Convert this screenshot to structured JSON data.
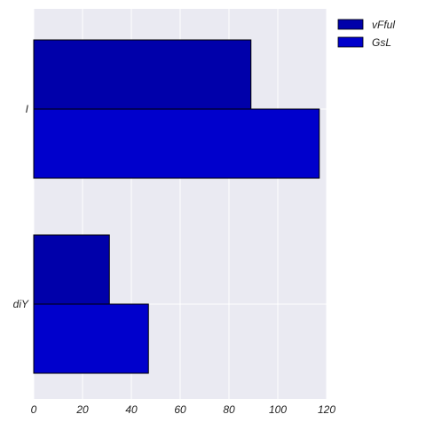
{
  "chart_data": {
    "type": "bar",
    "orientation": "horizontal",
    "categories": [
      "I",
      "diY"
    ],
    "series": [
      {
        "name": "vFful",
        "values": [
          89,
          31
        ],
        "color": "#0000aa"
      },
      {
        "name": "GsL",
        "values": [
          117,
          47
        ],
        "color": "#0000cc"
      }
    ],
    "xlim": [
      0,
      120
    ],
    "xticks": [
      "0",
      "20",
      "40",
      "60",
      "80",
      "100",
      "120"
    ],
    "grid": true,
    "legend_position": "top-right (outside plot)",
    "colors": {
      "plot_background": "#eaeaf2",
      "grid": "#ffffff",
      "bar_edge": "#000000"
    }
  }
}
